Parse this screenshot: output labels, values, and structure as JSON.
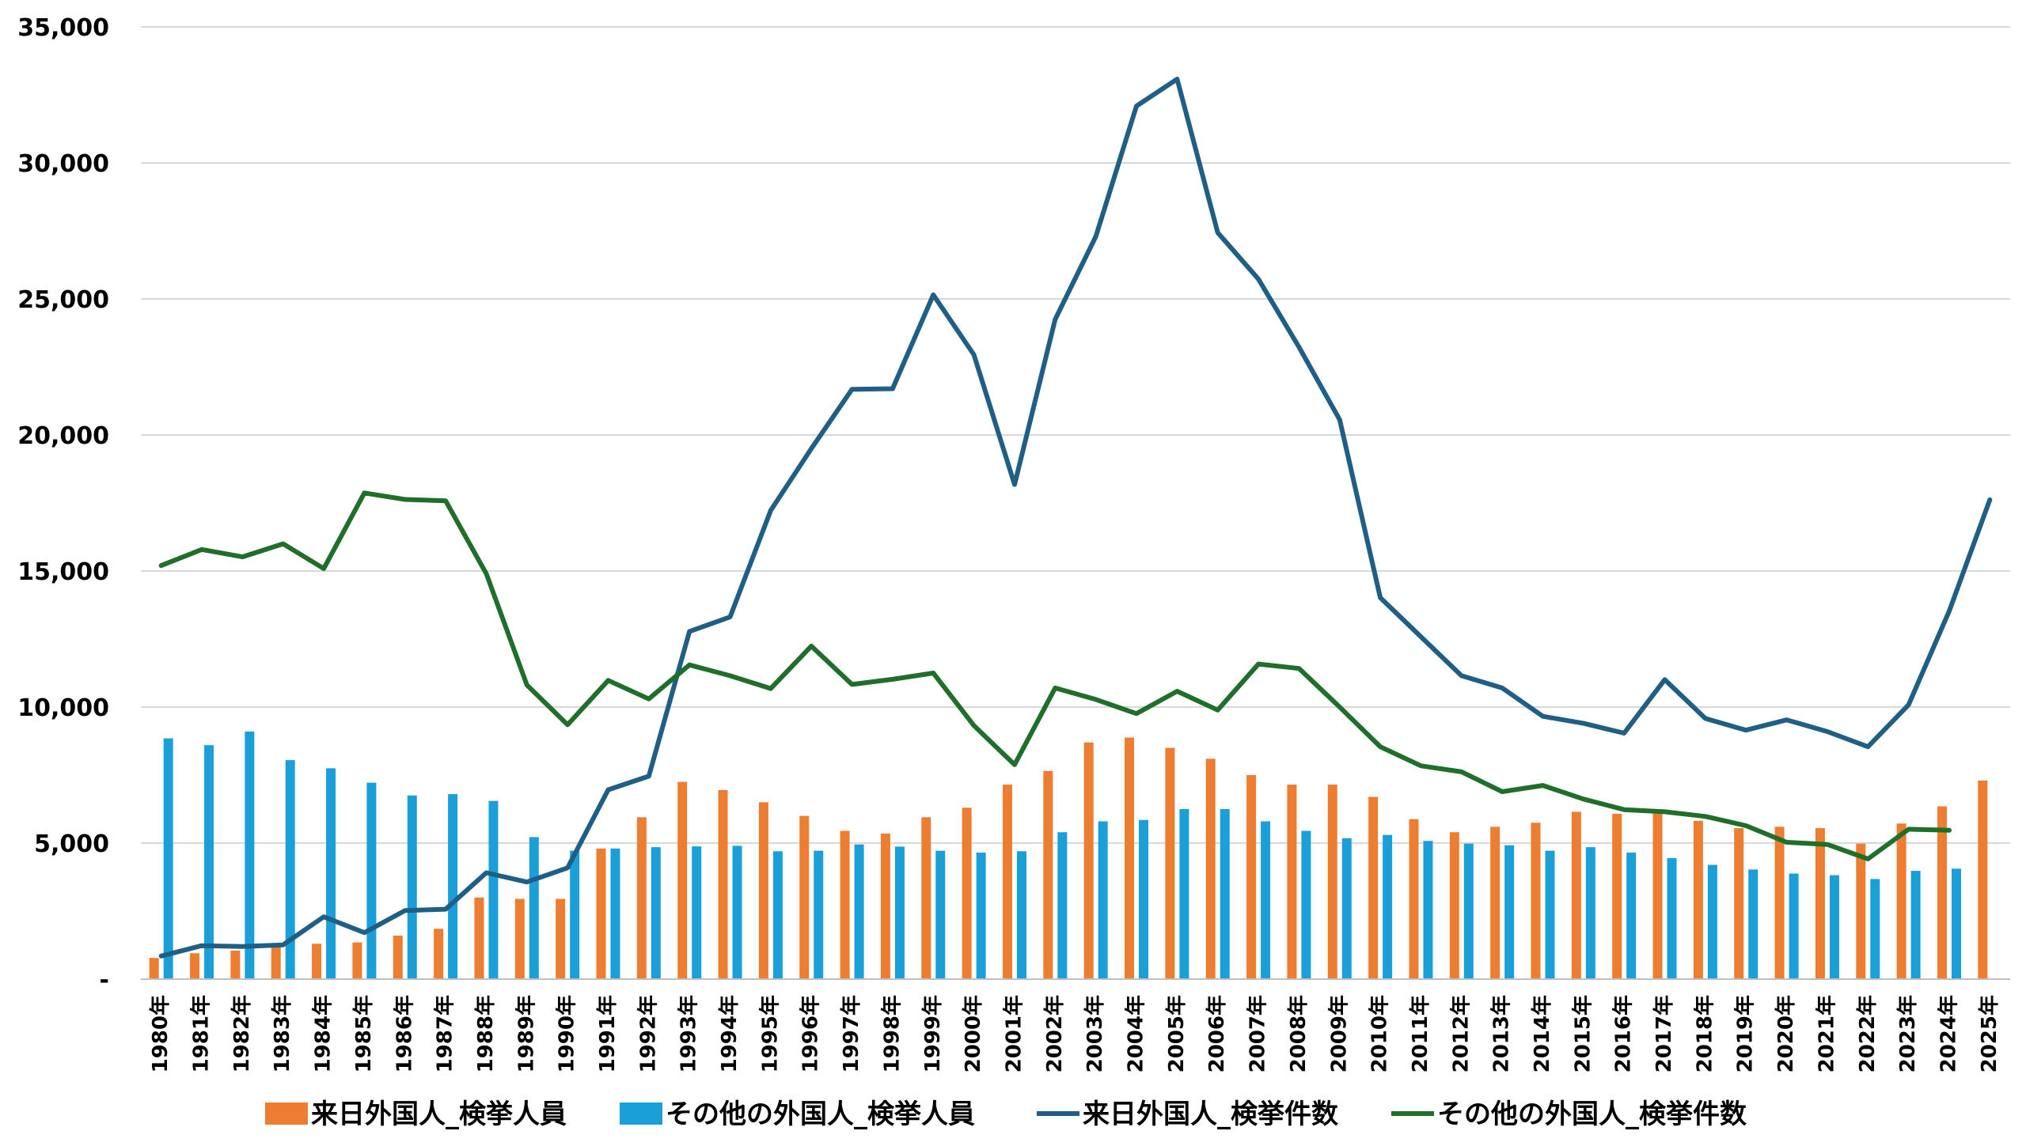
{
  "chart_data": {
    "type": "bar",
    "title": "",
    "xlabel": "",
    "ylabel": "",
    "ylim": [
      0,
      35000
    ],
    "grid": true,
    "legend_placement": "bottom",
    "yticks": [
      0,
      5000,
      10000,
      15000,
      20000,
      25000,
      30000,
      35000
    ],
    "ytick_labels": [
      "-",
      "5,000",
      "10,000",
      "15,000",
      "20,000",
      "25,000",
      "30,000",
      "35,000"
    ],
    "categories": [
      "1980年",
      "1981年",
      "1982年",
      "1983年",
      "1984年",
      "1985年",
      "1986年",
      "1987年",
      "1988年",
      "1989年",
      "1990年",
      "1991年",
      "1992年",
      "1993年",
      "1994年",
      "1995年",
      "1996年",
      "1997年",
      "1998年",
      "1999年",
      "2000年",
      "2001年",
      "2002年",
      "2003年",
      "2004年",
      "2005年",
      "2006年",
      "2007年",
      "2008年",
      "2009年",
      "2010年",
      "2011年",
      "2012年",
      "2013年",
      "2014年",
      "2015年",
      "2016年",
      "2017年",
      "2018年",
      "2019年",
      "2020年",
      "2021年",
      "2022年",
      "2023年",
      "2024年",
      "2025年"
    ],
    "series": [
      {
        "name": "来日外国人_検挙人員",
        "type": "bar",
        "color": "#ed7d31",
        "values": [
          780,
          950,
          1050,
          1200,
          1300,
          1350,
          1600,
          1850,
          3000,
          2950,
          2950,
          4800,
          5950,
          7250,
          6950,
          6500,
          6000,
          5450,
          5350,
          5950,
          6300,
          7150,
          7650,
          8700,
          8880,
          8500,
          8100,
          7500,
          7150,
          7150,
          6700,
          5880,
          5400,
          5600,
          5750,
          6150,
          6080,
          6100,
          5820,
          5550,
          5600,
          5550,
          4980,
          5720,
          6350,
          7300
        ]
      },
      {
        "name": "その他の外国人_検挙人員",
        "type": "bar",
        "color": "#1a9fd8",
        "values": [
          8850,
          8600,
          9100,
          8050,
          7750,
          7220,
          6750,
          6800,
          6550,
          5220,
          4720,
          4800,
          4850,
          4880,
          4900,
          4700,
          4720,
          4950,
          4870,
          4720,
          4650,
          4700,
          5400,
          5800,
          5850,
          6250,
          6250,
          5800,
          5450,
          5180,
          5300,
          5080,
          4980,
          4920,
          4720,
          4850,
          4650,
          4450,
          4200,
          4030,
          3880,
          3820,
          3680,
          3980,
          4060,
          null
        ]
      },
      {
        "name": "来日外国人_検挙件数",
        "type": "line",
        "color": "#1f5f86",
        "values": [
          850,
          1230,
          1200,
          1260,
          2290,
          1710,
          2520,
          2570,
          3910,
          3570,
          4090,
          6960,
          7460,
          12780,
          13310,
          17230,
          19500,
          21680,
          21700,
          25150,
          22950,
          18180,
          24250,
          27300,
          32090,
          33080,
          27440,
          25730,
          23230,
          20560,
          14020,
          12580,
          11150,
          10700,
          9660,
          9400,
          9040,
          11010,
          9580,
          9150,
          9530,
          9100,
          8540,
          10080,
          13530,
          17620
        ]
      },
      {
        "name": "その他の外国人_検挙件数",
        "type": "line",
        "color": "#1f6e2a",
        "values": [
          15200,
          15790,
          15520,
          16000,
          15090,
          17870,
          17630,
          17580,
          14900,
          10810,
          9350,
          10980,
          10300,
          11550,
          11150,
          10680,
          12240,
          10830,
          11020,
          11250,
          9320,
          7880,
          10700,
          10280,
          9760,
          10580,
          9890,
          11580,
          11420,
          10000,
          8540,
          7840,
          7620,
          6890,
          7120,
          6620,
          6230,
          6150,
          5980,
          5640,
          5030,
          4950,
          4420,
          5510,
          5470,
          null
        ]
      }
    ]
  }
}
